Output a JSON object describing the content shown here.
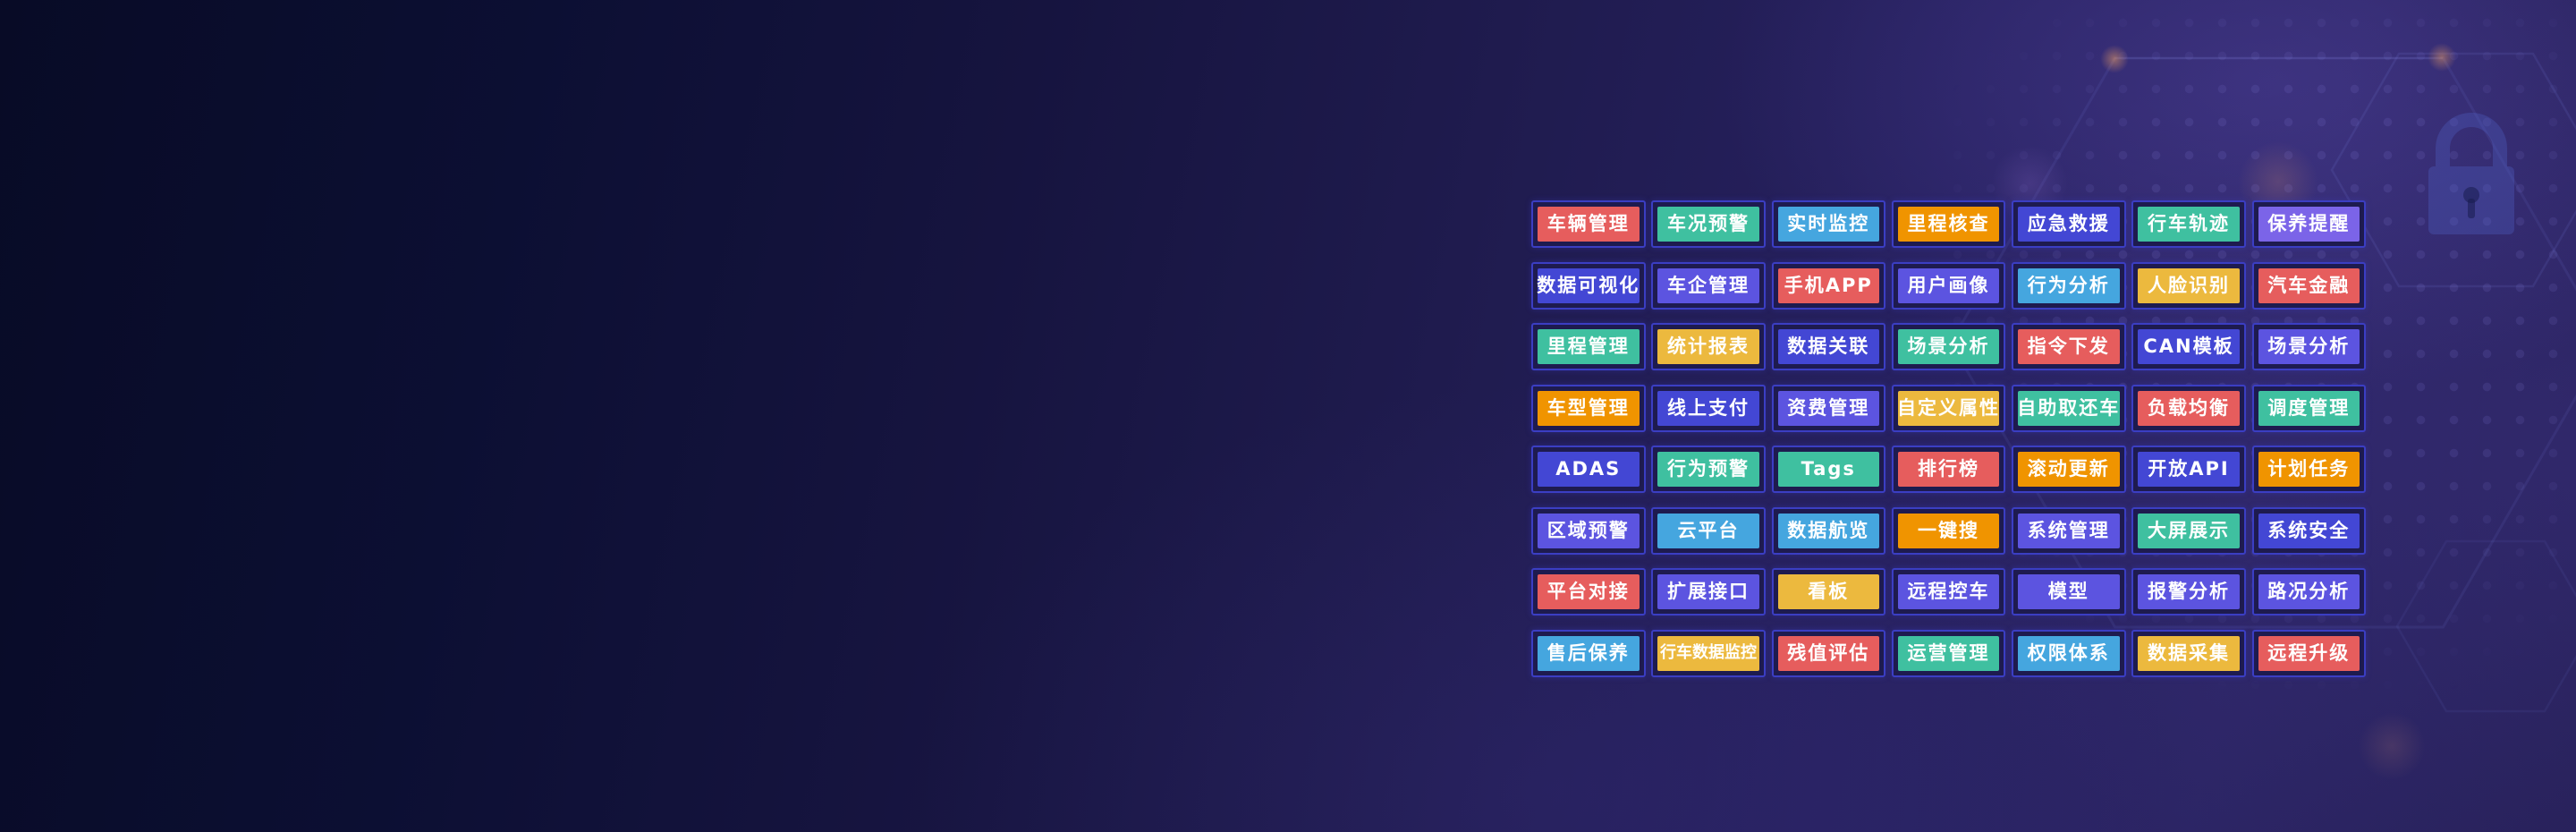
{
  "palette": {
    "red": "#e65d5d",
    "teal": "#3fc0a0",
    "sky": "#45a6df",
    "orange": "#f09400",
    "amber": "#ecb93e",
    "indigo": "#4347d4",
    "violet": "#5c54e0",
    "purple": "#7b64e8",
    "cell_border": "#3b3ec3",
    "cell_backdrop": "#1e1b4f",
    "label_color": "#ffffff",
    "background_dark": "#080b26",
    "background_purple": "#2c2565"
  },
  "decorations": {
    "lock_icon": "padlock",
    "pattern": "hexagon-dot-grid"
  },
  "feature_grid": {
    "rows": [
      [
        {
          "label": "车辆管理",
          "color": "red"
        },
        {
          "label": "车况预警",
          "color": "teal"
        },
        {
          "label": "实时监控",
          "color": "sky"
        },
        {
          "label": "里程核查",
          "color": "orange"
        },
        {
          "label": "应急救援",
          "color": "indigo"
        },
        {
          "label": "行车轨迹",
          "color": "teal"
        },
        {
          "label": "保养提醒",
          "color": "purple"
        }
      ],
      [
        {
          "label": "数据可视化",
          "color": "indigo"
        },
        {
          "label": "车企管理",
          "color": "violet"
        },
        {
          "label": "手机APP",
          "color": "red"
        },
        {
          "label": "用户画像",
          "color": "violet"
        },
        {
          "label": "行为分析",
          "color": "sky"
        },
        {
          "label": "人脸识别",
          "color": "amber"
        },
        {
          "label": "汽车金融",
          "color": "red"
        }
      ],
      [
        {
          "label": "里程管理",
          "color": "teal"
        },
        {
          "label": "统计报表",
          "color": "amber"
        },
        {
          "label": "数据关联",
          "color": "indigo"
        },
        {
          "label": "场景分析",
          "color": "teal"
        },
        {
          "label": "指令下发",
          "color": "red"
        },
        {
          "label": "CAN模板",
          "color": "indigo"
        },
        {
          "label": "场景分析",
          "color": "violet"
        }
      ],
      [
        {
          "label": "车型管理",
          "color": "orange"
        },
        {
          "label": "线上支付",
          "color": "indigo"
        },
        {
          "label": "资费管理",
          "color": "violet"
        },
        {
          "label": "自定义属性",
          "color": "amber"
        },
        {
          "label": "自助取还车",
          "color": "teal"
        },
        {
          "label": "负载均衡",
          "color": "red"
        },
        {
          "label": "调度管理",
          "color": "teal"
        }
      ],
      [
        {
          "label": "ADAS",
          "color": "indigo"
        },
        {
          "label": "行为预警",
          "color": "teal"
        },
        {
          "label": "Tags",
          "color": "teal"
        },
        {
          "label": "排行榜",
          "color": "red"
        },
        {
          "label": "滚动更新",
          "color": "orange"
        },
        {
          "label": "开放API",
          "color": "indigo"
        },
        {
          "label": "计划任务",
          "color": "orange"
        }
      ],
      [
        {
          "label": "区域预警",
          "color": "violet"
        },
        {
          "label": "云平台",
          "color": "sky"
        },
        {
          "label": "数据航览",
          "color": "sky"
        },
        {
          "label": "一键搜",
          "color": "orange"
        },
        {
          "label": "系统管理",
          "color": "violet"
        },
        {
          "label": "大屏展示",
          "color": "teal"
        },
        {
          "label": "系统安全",
          "color": "indigo"
        }
      ],
      [
        {
          "label": "平台对接",
          "color": "red"
        },
        {
          "label": "扩展接口",
          "color": "violet"
        },
        {
          "label": "看板",
          "color": "amber"
        },
        {
          "label": "远程控车",
          "color": "violet"
        },
        {
          "label": "模型",
          "color": "violet"
        },
        {
          "label": "报警分析",
          "color": "violet"
        },
        {
          "label": "路况分析",
          "color": "violet"
        }
      ],
      [
        {
          "label": "售后保养",
          "color": "sky"
        },
        {
          "label": "行车数据监控",
          "color": "amber"
        },
        {
          "label": "残值评估",
          "color": "red"
        },
        {
          "label": "运营管理",
          "color": "teal"
        },
        {
          "label": "权限体系",
          "color": "sky"
        },
        {
          "label": "数据采集",
          "color": "amber"
        },
        {
          "label": "远程升级",
          "color": "red"
        }
      ]
    ]
  }
}
